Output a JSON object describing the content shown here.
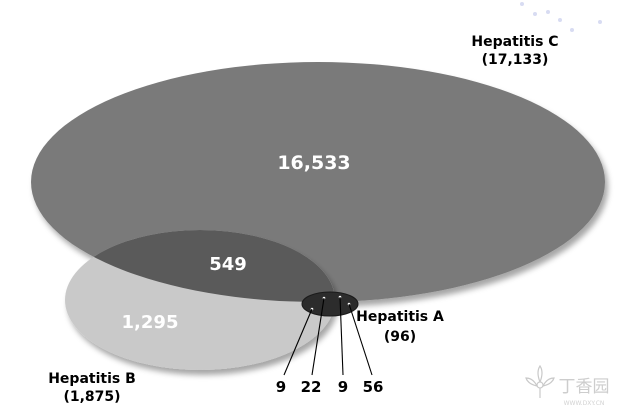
{
  "diagram": {
    "sets": {
      "hep_c": {
        "name": "Hepatitis C",
        "total": "(17,133)"
      },
      "hep_b": {
        "name": "Hepatitis B",
        "total": "(1,875)"
      },
      "hep_a": {
        "name": "Hepatitis A",
        "total": "(96)"
      }
    },
    "regions": {
      "c_only": "16,533",
      "b_and_c": "549",
      "b_only": "1,295"
    },
    "small_overlaps": [
      "9",
      "22",
      "9",
      "56"
    ]
  },
  "colors": {
    "hep_c_fill": "#7a7a7a",
    "hep_b_fill": "#c9c9c9",
    "overlap_fill": "#5a5a5a",
    "hep_a_fill": "#2c2c2c"
  },
  "watermark": {
    "text": "丁香园",
    "subtext": "WWW.DXY.CN"
  }
}
